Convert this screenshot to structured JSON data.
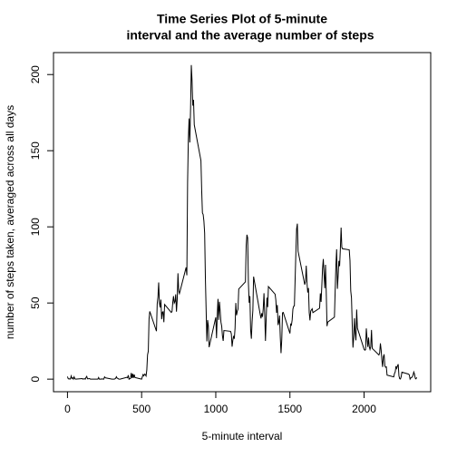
{
  "chart_data": {
    "type": "line",
    "title": [
      "Time Series Plot of 5-minute",
      "interval and the average number of steps"
    ],
    "x_label": "5-minute interval",
    "y_label": "number of steps taken, averaged across all days",
    "color": "#000000",
    "xlim": [
      -94.2,
      2449.2
    ],
    "ylim": [
      -8.25,
      214.42
    ],
    "xticks": [
      0,
      500,
      1000,
      1500,
      2000
    ],
    "yticks": [
      0,
      50,
      100,
      150,
      200
    ],
    "x": [
      0,
      5,
      10,
      15,
      20,
      25,
      30,
      35,
      40,
      45,
      50,
      55,
      100,
      105,
      110,
      115,
      120,
      125,
      130,
      135,
      140,
      145,
      150,
      155,
      200,
      205,
      210,
      215,
      220,
      225,
      230,
      235,
      240,
      245,
      250,
      255,
      300,
      305,
      310,
      315,
      320,
      325,
      330,
      335,
      340,
      345,
      350,
      355,
      400,
      405,
      410,
      415,
      420,
      425,
      430,
      435,
      440,
      445,
      450,
      455,
      500,
      505,
      510,
      515,
      520,
      525,
      530,
      535,
      540,
      545,
      550,
      555,
      600,
      605,
      610,
      615,
      620,
      625,
      630,
      635,
      640,
      645,
      650,
      655,
      700,
      705,
      710,
      715,
      720,
      725,
      730,
      735,
      740,
      745,
      750,
      755,
      800,
      805,
      810,
      815,
      820,
      825,
      830,
      835,
      840,
      845,
      850,
      855,
      900,
      905,
      910,
      915,
      920,
      925,
      930,
      935,
      940,
      945,
      950,
      955,
      1000,
      1005,
      1010,
      1015,
      1020,
      1025,
      1030,
      1035,
      1040,
      1045,
      1050,
      1055,
      1100,
      1105,
      1110,
      1115,
      1120,
      1125,
      1130,
      1135,
      1140,
      1145,
      1150,
      1155,
      1200,
      1205,
      1210,
      1215,
      1220,
      1225,
      1230,
      1235,
      1240,
      1245,
      1250,
      1255,
      1300,
      1305,
      1310,
      1315,
      1320,
      1325,
      1330,
      1335,
      1340,
      1345,
      1350,
      1355,
      1400,
      1405,
      1410,
      1415,
      1420,
      1425,
      1430,
      1435,
      1440,
      1445,
      1450,
      1455,
      1500,
      1505,
      1510,
      1515,
      1520,
      1525,
      1530,
      1535,
      1540,
      1545,
      1550,
      1555,
      1600,
      1605,
      1610,
      1615,
      1620,
      1625,
      1630,
      1635,
      1640,
      1645,
      1650,
      1655,
      1700,
      1705,
      1710,
      1715,
      1720,
      1725,
      1730,
      1735,
      1740,
      1745,
      1750,
      1755,
      1800,
      1805,
      1810,
      1815,
      1820,
      1825,
      1830,
      1835,
      1840,
      1845,
      1850,
      1855,
      1900,
      1905,
      1910,
      1915,
      1920,
      1925,
      1930,
      1935,
      1940,
      1945,
      1950,
      1955,
      2000,
      2005,
      2010,
      2015,
      2020,
      2025,
      2030,
      2035,
      2040,
      2045,
      2050,
      2055,
      2100,
      2105,
      2110,
      2115,
      2120,
      2125,
      2130,
      2135,
      2140,
      2145,
      2150,
      2155,
      2200,
      2205,
      2210,
      2215,
      2220,
      2225,
      2230,
      2235,
      2240,
      2245,
      2250,
      2255,
      2300,
      2305,
      2310,
      2315,
      2320,
      2325,
      2330,
      2335,
      2340,
      2345,
      2350,
      2355
    ],
    "values": [
      1.7,
      0.3,
      0.1,
      0.2,
      0.1,
      2.1,
      0.5,
      0.9,
      0,
      1.5,
      0.3,
      0,
      0.4,
      0,
      0.2,
      0.3,
      0,
      1.1,
      1.8,
      0.2,
      0.2,
      0.4,
      0.3,
      0,
      0,
      0,
      1.1,
      0,
      0,
      0.1,
      0,
      0.2,
      0,
      0,
      1.5,
      0.9,
      0,
      0,
      0,
      0,
      0.2,
      0.6,
      1.6,
      0.6,
      0.5,
      0.1,
      0,
      0,
      1.2,
      0.9,
      2.6,
      0,
      0.3,
      0.4,
      4.1,
      0.7,
      3.5,
      0.8,
      3.1,
      1.1,
      0,
      1.6,
      3,
      2.2,
      3.3,
      3,
      2.1,
      6.1,
      16,
      18.3,
      39.5,
      44.5,
      31.5,
      49.3,
      53.8,
      63.5,
      50,
      47.1,
      52.2,
      39.3,
      44,
      44.2,
      37.4,
      49,
      43.8,
      44.4,
      50.5,
      54.5,
      49.9,
      50.9,
      55.7,
      44.3,
      52.3,
      69.5,
      57.8,
      56.2,
      73.4,
      68.2,
      129.4,
      157.5,
      171.2,
      155.4,
      177.3,
      206.2,
      195.9,
      179.6,
      183.4,
      167,
      143.5,
      124,
      109.1,
      108.1,
      103.7,
      95.9,
      66.2,
      45.2,
      24.8,
      38.8,
      35,
      21,
      40.6,
      26.9,
      42.4,
      52.7,
      38.9,
      50.8,
      44.3,
      37.4,
      34.7,
      28.3,
      25.1,
      31.9,
      31.4,
      29.7,
      21.3,
      25.5,
      28.4,
      26.5,
      33.4,
      50,
      42,
      44.6,
      46,
      59.2,
      63.9,
      87.7,
      94.8,
      92.8,
      63.4,
      50.2,
      54.5,
      32.4,
      26.5,
      37.7,
      45.1,
      67.3,
      42.3,
      39.9,
      43.3,
      40.9,
      46.2,
      56.4,
      42.8,
      25.1,
      39.9,
      53.5,
      47.3,
      60.8,
      55.8,
      51.9,
      43.6,
      48.7,
      35.5,
      37.5,
      41.8,
      27.5,
      17.1,
      26.1,
      43.6,
      43.8,
      30,
      36.1,
      35.5,
      38.8,
      46,
      47.8,
      48.1,
      65.3,
      82.9,
      98.7,
      102.1,
      84,
      62.1,
      64.1,
      74.5,
      63.2,
      56.9,
      59.8,
      43.9,
      38.6,
      44.7,
      45.5,
      46.2,
      43.7,
      46.6,
      56.3,
      50.7,
      61.2,
      72.7,
      78.9,
      68.9,
      59.7,
      75.1,
      56.5,
      34.8,
      37.5,
      40.7,
      58,
      74.7,
      85.3,
      59.3,
      67.8,
      77.7,
      74.2,
      85.3,
      99.5,
      86.6,
      85.6,
      84.9,
      77.8,
      58,
      53.4,
      36.3,
      20.7,
      27.4,
      40,
      30.2,
      25.5,
      45.7,
      33.5,
      19.6,
      19,
      19.3,
      33.3,
      26.8,
      21.2,
      27.3,
      21.3,
      19.5,
      21.3,
      32.3,
      20.2,
      15.9,
      17.2,
      23.5,
      19.2,
      12.5,
      8,
      14.7,
      16.3,
      8.7,
      7.8,
      8.1,
      2.6,
      1.5,
      3.7,
      4.8,
      8.5,
      7.1,
      8.7,
      9.8,
      2.2,
      0.3,
      0.1,
      1.6,
      4.6,
      3.3,
      2.8,
      0,
      0.8,
      1,
      1.6,
      2.6,
      4.7,
      3.3,
      0.6,
      0.2,
      1.1
    ]
  }
}
